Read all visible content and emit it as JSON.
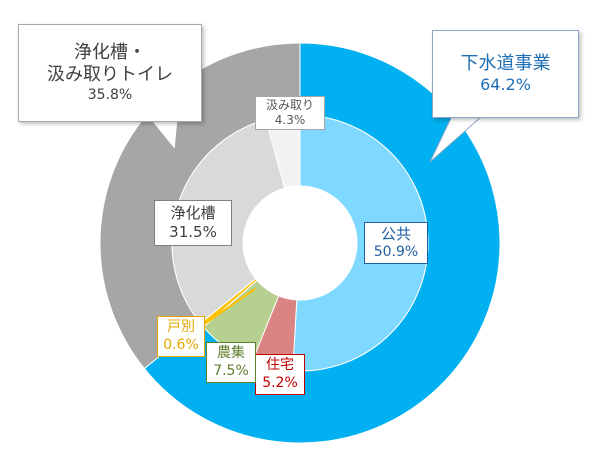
{
  "chart_data": {
    "type": "pie",
    "title": "",
    "rings": [
      {
        "ring": "outer",
        "slices": [
          {
            "name": "下水道事業",
            "value": 64.2,
            "label": "64.2%",
            "color": "#00B0F0"
          },
          {
            "name": "浄化槽・汲み取りトイレ",
            "value": 35.8,
            "label": "35.8%",
            "color": "#A6A6A6"
          }
        ]
      },
      {
        "ring": "inner",
        "slices": [
          {
            "name": "公共",
            "value": 50.9,
            "label": "50.9%",
            "color": "#7FD8FF"
          },
          {
            "name": "住宅",
            "value": 5.2,
            "label": "5.2%",
            "color": "#D98383"
          },
          {
            "name": "農集",
            "value": 7.5,
            "label": "7.5%",
            "color": "#B5D08F"
          },
          {
            "name": "戸別",
            "value": 0.6,
            "label": "0.6%",
            "color": "#FFC000"
          },
          {
            "name": "浄化槽",
            "value": 31.5,
            "label": "31.5%",
            "color": "#D9D9D9"
          },
          {
            "name": "汲み取り",
            "value": 4.3,
            "label": "4.3%",
            "color": "#F2F2F2"
          }
        ]
      }
    ],
    "callouts": {
      "sewer": {
        "line1": "下水道事業",
        "pct": "64.2%"
      },
      "septic_total": {
        "line1": "浄化槽・",
        "line2": "汲み取りトイレ",
        "pct": "35.8%"
      }
    },
    "label_colors": {
      "sewer": "#1F6FB5",
      "public": "#1F5FA5",
      "housing": "#C00000",
      "agri": "#5E7F2E",
      "individual": "#E6A800",
      "septic": "#404040",
      "pit": "#595959"
    }
  }
}
